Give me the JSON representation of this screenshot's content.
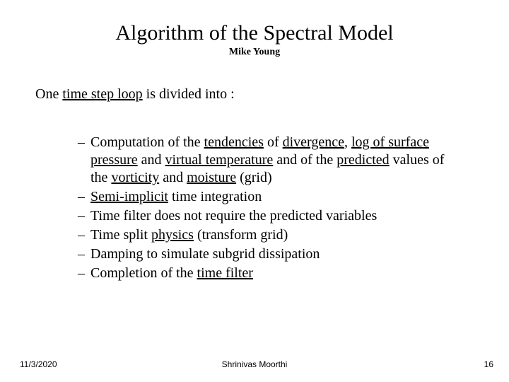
{
  "title": "Algorithm of the Spectral Model",
  "subtitle": "Mike Young",
  "intro": {
    "pre": "One ",
    "u1": "time step loop",
    "post": " is divided into :"
  },
  "bullets": [
    {
      "segments": [
        {
          "t": "Computation of the "
        },
        {
          "t": "tendencies",
          "u": true
        },
        {
          "t": " of "
        },
        {
          "t": "divergence",
          "u": true
        },
        {
          "t": ", "
        },
        {
          "t": "log of surface pressure",
          "u": true
        },
        {
          "t": " and "
        },
        {
          "t": "virtual temperature",
          "u": true
        },
        {
          "t": " and of the "
        },
        {
          "t": "predicted",
          "u": true
        },
        {
          "t": " values of the "
        },
        {
          "t": "vorticity",
          "u": true
        },
        {
          "t": " and "
        },
        {
          "t": "moisture",
          "u": true
        },
        {
          "t": " (grid)"
        }
      ]
    },
    {
      "segments": [
        {
          "t": "Semi-implicit",
          "u": true
        },
        {
          "t": " time integration"
        }
      ]
    },
    {
      "segments": [
        {
          "t": "Time filter does not require the predicted variables"
        }
      ]
    },
    {
      "segments": [
        {
          "t": "Time split "
        },
        {
          "t": "physics",
          "u": true
        },
        {
          "t": " (transform grid)"
        }
      ]
    },
    {
      "segments": [
        {
          "t": "Damping to simulate subgrid dissipation"
        }
      ]
    },
    {
      "segments": [
        {
          "t": "Completion of the "
        },
        {
          "t": "time filter",
          "u": true
        }
      ]
    }
  ],
  "footer": {
    "date": "11/3/2020",
    "author": "Shrinivas Moorthi",
    "page": "16"
  },
  "style": {
    "background_color": "#ffffff",
    "text_color": "#000000",
    "title_fontsize": 30,
    "subtitle_fontsize": 14,
    "body_fontsize": 20,
    "footer_fontsize": 12,
    "font_family_body": "Times New Roman",
    "font_family_footer": "Arial"
  }
}
